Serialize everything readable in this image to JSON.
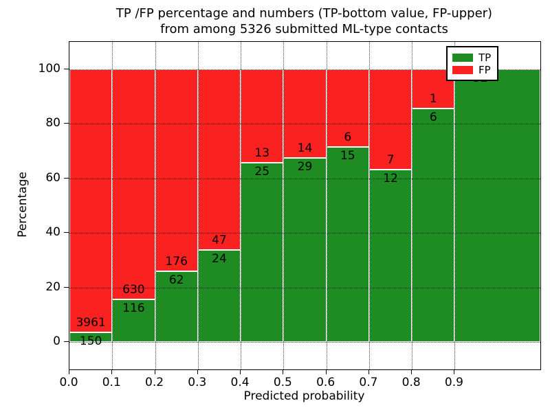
{
  "chart_data": {
    "type": "bar",
    "variant": "stacked-percentage-histogram",
    "title_line1": "TP /FP percentage and numbers (TP-bottom value, FP-upper)",
    "title_line2": "from among 5326 submitted ML-type contacts",
    "xlabel": "Predicted probability",
    "ylabel": "Percentage",
    "total_contacts": "5326",
    "bin_edges": [
      0.0,
      0.1,
      0.2,
      0.3,
      0.4,
      0.5,
      0.6,
      0.7,
      0.8,
      0.9,
      1.1
    ],
    "x_tick_labels": [
      "0.0",
      "0.1",
      "0.2",
      "0.3",
      "0.4",
      "0.5",
      "0.6",
      "0.7",
      "0.8",
      "0.9"
    ],
    "x_ticks": [
      0.0,
      0.1,
      0.2,
      0.3,
      0.4,
      0.5,
      0.6,
      0.7,
      0.8,
      0.9
    ],
    "y_ticks": [
      0,
      20,
      40,
      60,
      80,
      100
    ],
    "xlim": [
      0,
      1.1
    ],
    "ylim": [
      -10,
      110
    ],
    "grid": true,
    "legend_position": "upper right",
    "series": [
      {
        "name": "TP",
        "color": "#1e8c23",
        "values": [
          150,
          116,
          62,
          24,
          25,
          29,
          15,
          12,
          6,
          32
        ]
      },
      {
        "name": "FP",
        "color": "#fa2121",
        "values": [
          3961,
          630,
          176,
          47,
          13,
          14,
          6,
          7,
          1,
          0
        ]
      }
    ],
    "tp_percentages": [
      3.6,
      15.5,
      26.1,
      33.8,
      65.8,
      67.4,
      71.4,
      63.2,
      85.7,
      100.0
    ]
  }
}
